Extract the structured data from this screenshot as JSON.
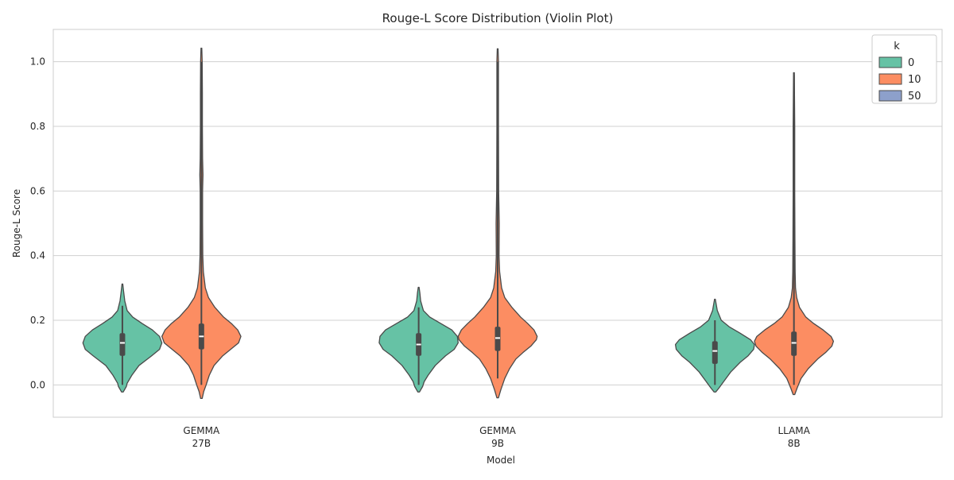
{
  "chart_data": {
    "type": "violin",
    "title": "Rouge-L Score Distribution (Violin Plot)",
    "xlabel": "Model",
    "ylabel": "Rouge-L Score",
    "ylim": [
      -0.1,
      1.1
    ],
    "yticks": [
      0.0,
      0.2,
      0.4,
      0.6,
      0.8,
      1.0
    ],
    "ytick_labels": [
      "0.0",
      "0.2",
      "0.4",
      "0.6",
      "0.8",
      "1.0"
    ],
    "grid": "horizontal",
    "legend": {
      "title": "k",
      "placement": "top-right",
      "entries": [
        {
          "label": "0",
          "color": "#66c2a5"
        },
        {
          "label": "10",
          "color": "#fc8d62"
        },
        {
          "label": "50",
          "color": "#8da0cb"
        }
      ]
    },
    "categories": [
      {
        "line1": "GEMMA",
        "line2": "27B"
      },
      {
        "line1": "GEMMA",
        "line2": "9B"
      },
      {
        "line1": "LLAMA",
        "line2": "8B"
      }
    ],
    "series": [
      {
        "name": "0",
        "color": "#66c2a5",
        "violins": [
          {
            "ymin": -0.022,
            "ymax": 0.312,
            "median": 0.13,
            "q1": 0.09,
            "q3": 0.16,
            "whisk_lo": 0.0,
            "whisk_hi": 0.245,
            "profile": [
              [
                -0.022,
                0.02
              ],
              [
                -0.005,
                0.1
              ],
              [
                0.005,
                0.12
              ],
              [
                0.03,
                0.24
              ],
              [
                0.06,
                0.42
              ],
              [
                0.09,
                0.74
              ],
              [
                0.11,
                0.94
              ],
              [
                0.13,
                1.0
              ],
              [
                0.15,
                0.94
              ],
              [
                0.17,
                0.76
              ],
              [
                0.19,
                0.5
              ],
              [
                0.21,
                0.26
              ],
              [
                0.23,
                0.12
              ],
              [
                0.26,
                0.06
              ],
              [
                0.29,
                0.03
              ],
              [
                0.312,
                0.01
              ]
            ]
          },
          {
            "ymin": -0.022,
            "ymax": 0.302,
            "median": 0.125,
            "q1": 0.09,
            "q3": 0.16,
            "whisk_lo": 0.0,
            "whisk_hi": 0.24,
            "profile": [
              [
                -0.022,
                0.02
              ],
              [
                -0.005,
                0.1
              ],
              [
                0.01,
                0.14
              ],
              [
                0.03,
                0.24
              ],
              [
                0.06,
                0.42
              ],
              [
                0.09,
                0.68
              ],
              [
                0.11,
                0.9
              ],
              [
                0.13,
                1.0
              ],
              [
                0.15,
                0.98
              ],
              [
                0.17,
                0.84
              ],
              [
                0.19,
                0.56
              ],
              [
                0.21,
                0.28
              ],
              [
                0.23,
                0.12
              ],
              [
                0.26,
                0.05
              ],
              [
                0.285,
                0.03
              ],
              [
                0.302,
                0.01
              ]
            ]
          },
          {
            "ymin": -0.022,
            "ymax": 0.265,
            "median": 0.105,
            "q1": 0.065,
            "q3": 0.135,
            "whisk_lo": 0.0,
            "whisk_hi": 0.2,
            "profile": [
              [
                -0.022,
                0.02
              ],
              [
                -0.01,
                0.1
              ],
              [
                0.01,
                0.22
              ],
              [
                0.04,
                0.4
              ],
              [
                0.07,
                0.64
              ],
              [
                0.09,
                0.84
              ],
              [
                0.11,
                0.98
              ],
              [
                0.125,
                1.0
              ],
              [
                0.14,
                0.9
              ],
              [
                0.16,
                0.64
              ],
              [
                0.18,
                0.36
              ],
              [
                0.2,
                0.16
              ],
              [
                0.23,
                0.06
              ],
              [
                0.265,
                0.01
              ]
            ]
          }
        ]
      },
      {
        "name": "10",
        "color": "#fc8d62",
        "violins": [
          {
            "ymin": -0.042,
            "ymax": 1.042,
            "median": 0.15,
            "q1": 0.11,
            "q3": 0.19,
            "whisk_lo": 0.0,
            "whisk_hi": 1.0,
            "profile": [
              [
                -0.042,
                0.02
              ],
              [
                -0.02,
                0.06
              ],
              [
                0.0,
                0.12
              ],
              [
                0.03,
                0.2
              ],
              [
                0.06,
                0.32
              ],
              [
                0.09,
                0.54
              ],
              [
                0.11,
                0.74
              ],
              [
                0.13,
                0.94
              ],
              [
                0.15,
                1.0
              ],
              [
                0.17,
                0.92
              ],
              [
                0.19,
                0.76
              ],
              [
                0.21,
                0.56
              ],
              [
                0.24,
                0.34
              ],
              [
                0.27,
                0.18
              ],
              [
                0.3,
                0.1
              ],
              [
                0.35,
                0.05
              ],
              [
                0.4,
                0.035
              ],
              [
                0.5,
                0.03
              ],
              [
                0.6,
                0.03
              ],
              [
                0.65,
                0.04
              ],
              [
                0.7,
                0.03
              ],
              [
                0.8,
                0.025
              ],
              [
                0.9,
                0.025
              ],
              [
                1.0,
                0.02
              ],
              [
                1.042,
                0.01
              ]
            ]
          },
          {
            "ymin": -0.04,
            "ymax": 1.04,
            "median": 0.145,
            "q1": 0.105,
            "q3": 0.18,
            "whisk_lo": 0.02,
            "whisk_hi": 1.0,
            "profile": [
              [
                -0.04,
                0.02
              ],
              [
                -0.015,
                0.08
              ],
              [
                0.02,
                0.18
              ],
              [
                0.05,
                0.3
              ],
              [
                0.08,
                0.46
              ],
              [
                0.1,
                0.64
              ],
              [
                0.12,
                0.84
              ],
              [
                0.14,
                0.98
              ],
              [
                0.15,
                1.0
              ],
              [
                0.17,
                0.92
              ],
              [
                0.19,
                0.76
              ],
              [
                0.21,
                0.58
              ],
              [
                0.24,
                0.36
              ],
              [
                0.27,
                0.18
              ],
              [
                0.3,
                0.1
              ],
              [
                0.35,
                0.05
              ],
              [
                0.4,
                0.035
              ],
              [
                0.5,
                0.04
              ],
              [
                0.6,
                0.025
              ],
              [
                0.8,
                0.02
              ],
              [
                1.0,
                0.02
              ],
              [
                1.04,
                0.01
              ]
            ]
          },
          {
            "ymin": -0.03,
            "ymax": 0.966,
            "median": 0.13,
            "q1": 0.09,
            "q3": 0.165,
            "whisk_lo": 0.0,
            "whisk_hi": 0.96,
            "profile": [
              [
                -0.03,
                0.02
              ],
              [
                -0.01,
                0.08
              ],
              [
                0.02,
                0.18
              ],
              [
                0.05,
                0.36
              ],
              [
                0.08,
                0.6
              ],
              [
                0.1,
                0.8
              ],
              [
                0.12,
                0.96
              ],
              [
                0.135,
                1.0
              ],
              [
                0.15,
                0.94
              ],
              [
                0.17,
                0.74
              ],
              [
                0.19,
                0.5
              ],
              [
                0.21,
                0.3
              ],
              [
                0.24,
                0.14
              ],
              [
                0.27,
                0.07
              ],
              [
                0.3,
                0.04
              ],
              [
                0.35,
                0.03
              ],
              [
                0.45,
                0.025
              ],
              [
                0.6,
                0.02
              ],
              [
                0.8,
                0.02
              ],
              [
                0.966,
                0.01
              ]
            ]
          }
        ]
      },
      {
        "name": "50",
        "color": "#8da0cb",
        "violins": []
      }
    ]
  }
}
